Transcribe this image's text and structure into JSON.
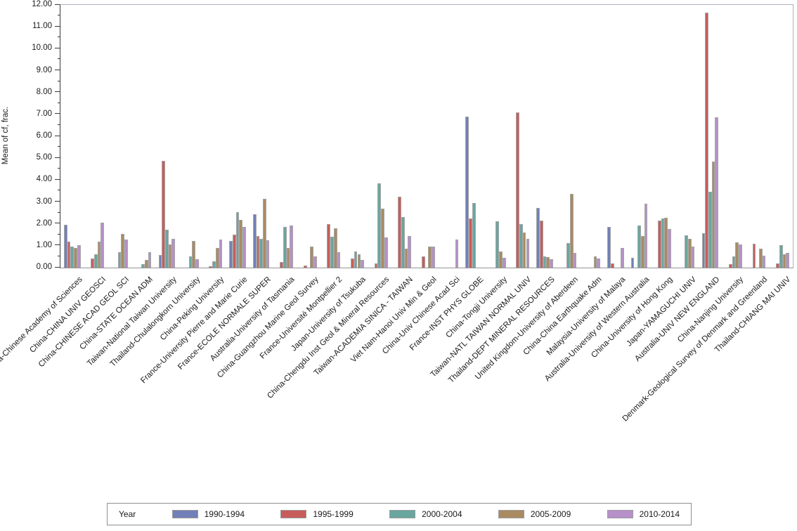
{
  "y_axis": {
    "label": "Mean of cf, frac.",
    "tick_labels": [
      "0.00",
      "1.00",
      "2.00",
      "3.00",
      "4.00",
      "5.00",
      "6.00",
      "7.00",
      "8.00",
      "9.00",
      "10.00",
      "11.00",
      "12.00"
    ]
  },
  "legend": {
    "title": "Year"
  },
  "chart_data": {
    "type": "bar",
    "title": "",
    "xlabel": "",
    "ylabel": "Mean of cf, frac.",
    "ylim": [
      0,
      12
    ],
    "ytick_step": 1,
    "ytick_minor_step": 0.5,
    "grid": false,
    "legend_position": "bottom",
    "legend_title": "Year",
    "categories": [
      "China-Chinese Academy of Sciences",
      "China-CHINA UNIV GEOSCI",
      "China-CHINESE ACAD GEOL SCI",
      "China-STATE OCEAN ADM",
      "Taiwan-National Taiwan University",
      "Thailand-Chulalongkorn University",
      "China-Peking University",
      "France-University Pierre and Marie Curie",
      "France-ECOLE NORMALE SUPER",
      "Australia-University of Tasmania",
      "China-Guangzhou Marine Geol Survey",
      "France-Université Montpellier 2",
      "Japan-University of Tsukuba",
      "China-Chengdu Inst Geol & Mineral Resources",
      "Taiwan-ACADEMIA SINICA - TAIWAN",
      "Viet Nam-Hanoi Univ Min & Geol",
      "China-Univ Chinese Acad Sci",
      "France-INST PHYS GLOBE",
      "China-Tongji University",
      "Taiwan-NATL TAIWAN NORMAL UNIV",
      "Thailand-DEPT MINERAL RESOURCES",
      "United Kingdom-University of Aberdeen",
      "China-China Earthquake Adm",
      "Malaysia-University of Malaya",
      "Australia-University of Western Australia",
      "China-University of Hong Kong",
      "Japan-YAMAGUCHI UNIV",
      "Australia-UNIV NEW ENGLAND",
      "China-Nanjing University",
      "Denmark-Geological Survey of Denmark and Greenland",
      "Thailand-CHIANG MAI UNIV"
    ],
    "series": [
      {
        "name": "1990-1994",
        "color": "#7180B8",
        "values": [
          1.95,
          null,
          null,
          null,
          0.58,
          null,
          null,
          1.22,
          2.44,
          null,
          null,
          null,
          null,
          null,
          null,
          null,
          null,
          6.9,
          null,
          null,
          2.73,
          null,
          null,
          1.85,
          0.45,
          null,
          null,
          1.58,
          null,
          null,
          null
        ]
      },
      {
        "name": "1995-1999",
        "color": "#C75D5B",
        "values": [
          1.2,
          0.42,
          null,
          null,
          4.88,
          null,
          0.07,
          1.52,
          1.44,
          0.26,
          0.1,
          1.98,
          0.42,
          0.18,
          3.25,
          0.5,
          null,
          2.25,
          null,
          7.08,
          2.15,
          null,
          null,
          0.2,
          null,
          2.15,
          null,
          11.65,
          0.15,
          1.08,
          0.18
        ]
      },
      {
        "name": "2000-2004",
        "color": "#69A69F",
        "values": [
          0.97,
          0.6,
          0.72,
          0.17,
          1.73,
          0.5,
          0.3,
          2.53,
          1.3,
          1.85,
          null,
          1.4,
          0.74,
          3.85,
          2.3,
          null,
          null,
          2.95,
          2.11,
          2.0,
          0.5,
          1.12,
          null,
          null,
          1.92,
          2.25,
          1.48,
          3.46,
          0.5,
          null,
          1.02
        ]
      },
      {
        "name": "2005-2009",
        "color": "#A98B62",
        "values": [
          0.9,
          1.18,
          1.55,
          0.36,
          1.05,
          1.22,
          0.9,
          2.18,
          3.16,
          0.9,
          0.95,
          1.8,
          0.6,
          2.68,
          0.88,
          0.97,
          null,
          null,
          0.75,
          1.6,
          0.48,
          3.37,
          0.5,
          null,
          1.45,
          2.28,
          1.3,
          4.85,
          1.17,
          0.88,
          0.61
        ]
      },
      {
        "name": "2010-2014",
        "color": "#B78FC9",
        "values": [
          1.03,
          2.06,
          1.27,
          0.71,
          1.3,
          0.4,
          1.28,
          1.87,
          1.25,
          1.92,
          0.5,
          0.7,
          0.35,
          1.38,
          1.44,
          0.95,
          1.28,
          null,
          0.45,
          1.31,
          0.38,
          0.66,
          0.42,
          0.9,
          2.92,
          1.75,
          0.95,
          6.88,
          1.05,
          0.53,
          0.66
        ]
      }
    ]
  }
}
